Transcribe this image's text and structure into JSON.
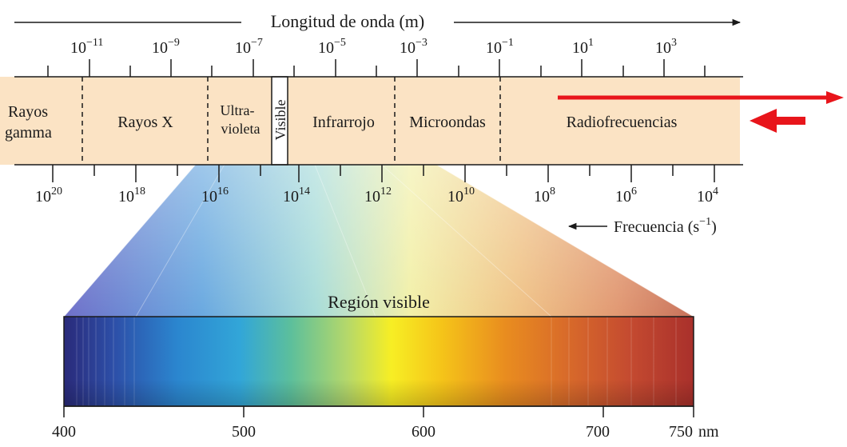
{
  "wavelength_axis": {
    "title": "Longitud de onda (m)",
    "tick_labels": [
      {
        "base": "10",
        "exp": "−11"
      },
      {
        "base": "10",
        "exp": "−9"
      },
      {
        "base": "10",
        "exp": "−7"
      },
      {
        "base": "10",
        "exp": "−5"
      },
      {
        "base": "10",
        "exp": "−3"
      },
      {
        "base": "10",
        "exp": "−1"
      },
      {
        "base": "10",
        "exp": "1"
      },
      {
        "base": "10",
        "exp": "3"
      }
    ]
  },
  "regions": {
    "gamma": [
      "Rayos",
      "gamma"
    ],
    "xray": "Rayos X",
    "uv": [
      "Ultra-",
      "violeta"
    ],
    "visible": "Visible",
    "ir": "Infrarrojo",
    "micro": "Microondas",
    "radio": "Radiofrecuencias"
  },
  "frequency_axis": {
    "title_base": "Frecuencia (s",
    "title_exp": "−1",
    "title_tail": ")",
    "tick_labels": [
      {
        "base": "10",
        "exp": "20"
      },
      {
        "base": "10",
        "exp": "18"
      },
      {
        "base": "10",
        "exp": "16"
      },
      {
        "base": "10",
        "exp": "14"
      },
      {
        "base": "10",
        "exp": "12"
      },
      {
        "base": "10",
        "exp": "10"
      },
      {
        "base": "10",
        "exp": "8"
      },
      {
        "base": "10",
        "exp": "6"
      },
      {
        "base": "10",
        "exp": "4"
      }
    ]
  },
  "visible_region": {
    "title": "Región visible",
    "tick_labels": [
      "400",
      "500",
      "600",
      "700",
      "750"
    ],
    "unit": "nm"
  },
  "colors": {
    "band_fill": "#fbe3c4",
    "annotation_arrows": "#e8151b",
    "text": "#1a1a1a"
  }
}
